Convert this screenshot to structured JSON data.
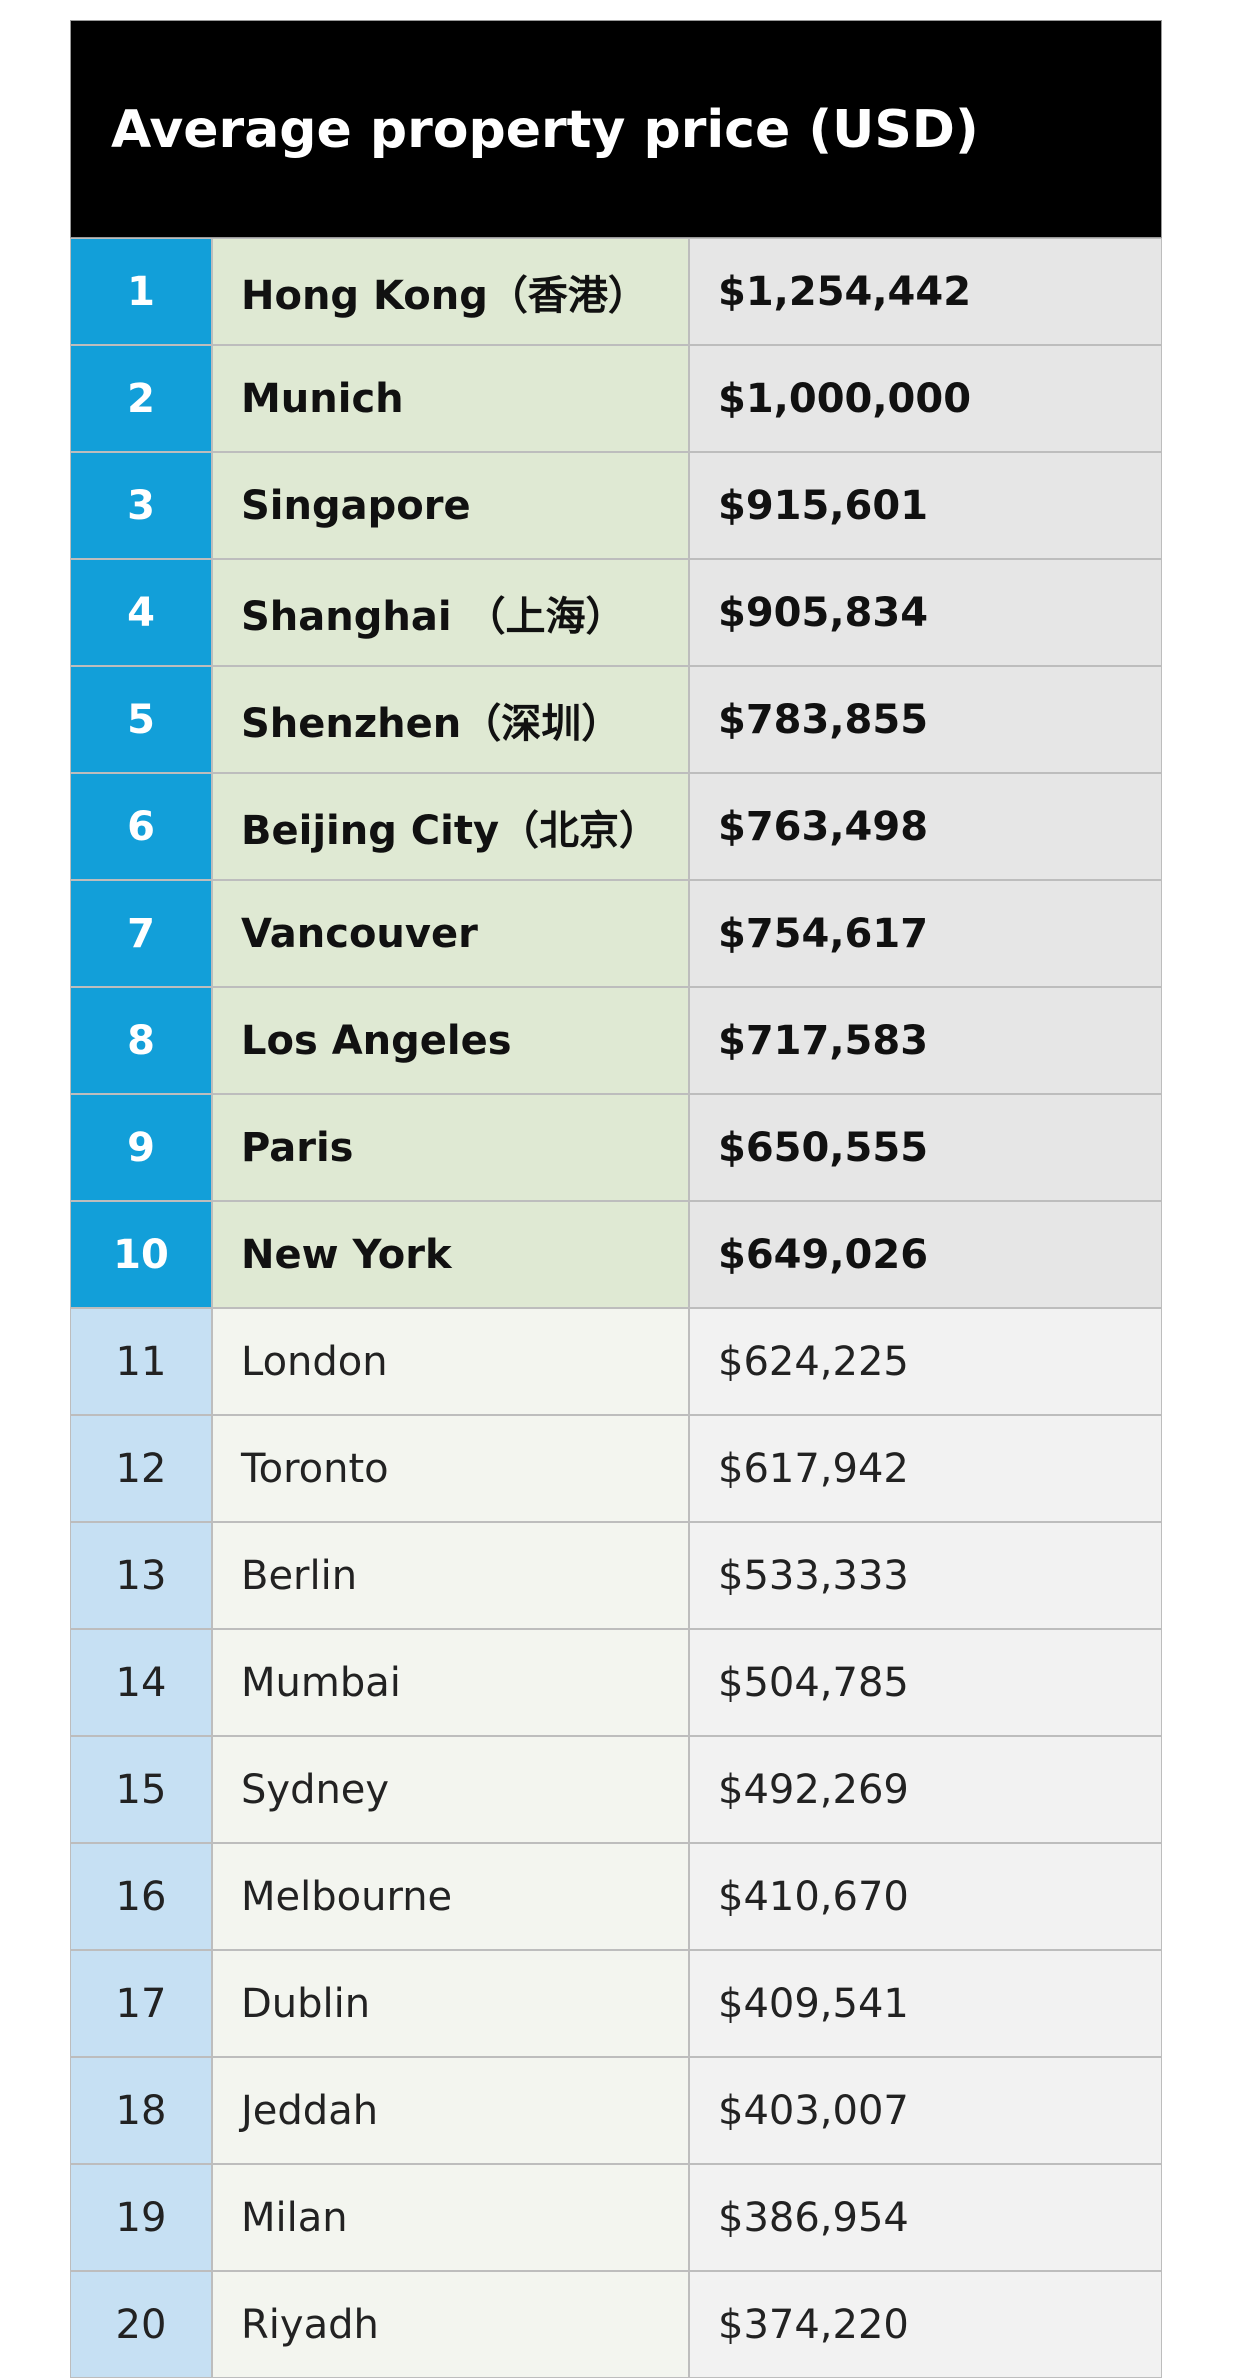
{
  "header": {
    "title": "Average property price (USD)"
  },
  "table": {
    "rows": [
      [
        "1",
        "Hong Kong（香港）",
        "$1,254,442"
      ],
      [
        "2",
        "Munich",
        "$1,000,000"
      ],
      [
        "3",
        "Singapore",
        "$915,601"
      ],
      [
        "4",
        "Shanghai （上海）",
        "$905,834"
      ],
      [
        "5",
        "Shenzhen（深圳）",
        "$783,855"
      ],
      [
        "6",
        "Beijing City（北京）",
        "$763,498"
      ],
      [
        "7",
        "Vancouver",
        "$754,617"
      ],
      [
        "8",
        "Los Angeles",
        "$717,583"
      ],
      [
        "9",
        "Paris",
        "$650,555"
      ],
      [
        "10",
        "New York",
        "$649,026"
      ],
      [
        "11",
        "London",
        "$624,225"
      ],
      [
        "12",
        "Toronto",
        "$617,942"
      ],
      [
        "13",
        "Berlin",
        "$533,333"
      ],
      [
        "14",
        "Mumbai",
        "$504,785"
      ],
      [
        "15",
        "Sydney",
        "$492,269"
      ],
      [
        "16",
        "Melbourne",
        "$410,670"
      ],
      [
        "17",
        "Dublin",
        "$409,541"
      ],
      [
        "18",
        "Jeddah",
        "$403,007"
      ],
      [
        "19",
        "Milan",
        "$386,954"
      ],
      [
        "20",
        "Riyadh",
        "$374,220"
      ]
    ]
  }
}
